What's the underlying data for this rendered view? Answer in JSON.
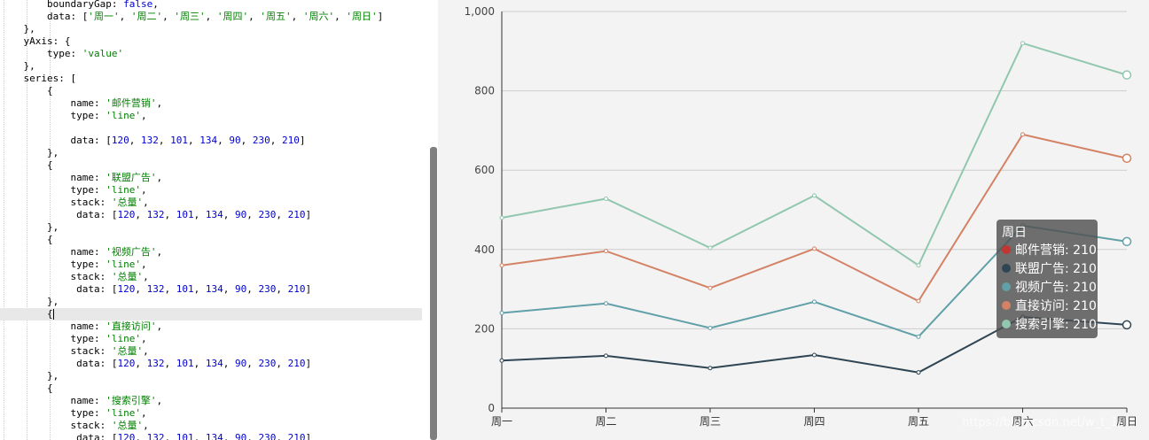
{
  "editor": {
    "lines": [
      [
        {
          "t": "        boundaryGap: ",
          "c": "key"
        },
        {
          "t": "false",
          "c": "bool"
        },
        {
          "t": ",",
          "c": "key"
        }
      ],
      [
        {
          "t": "        data: [",
          "c": "key"
        },
        {
          "t": "'周一'",
          "c": "str"
        },
        {
          "t": ", ",
          "c": "key"
        },
        {
          "t": "'周二'",
          "c": "str"
        },
        {
          "t": ", ",
          "c": "key"
        },
        {
          "t": "'周三'",
          "c": "str"
        },
        {
          "t": ", ",
          "c": "key"
        },
        {
          "t": "'周四'",
          "c": "str"
        },
        {
          "t": ", ",
          "c": "key"
        },
        {
          "t": "'周五'",
          "c": "str"
        },
        {
          "t": ", ",
          "c": "key"
        },
        {
          "t": "'周六'",
          "c": "str"
        },
        {
          "t": ", ",
          "c": "key"
        },
        {
          "t": "'周日'",
          "c": "str"
        },
        {
          "t": "]",
          "c": "key"
        }
      ],
      [
        {
          "t": "    },",
          "c": "key"
        }
      ],
      [
        {
          "t": "    yAxis: {",
          "c": "key"
        }
      ],
      [
        {
          "t": "        type: ",
          "c": "key"
        },
        {
          "t": "'value'",
          "c": "str"
        }
      ],
      [
        {
          "t": "    },",
          "c": "key"
        }
      ],
      [
        {
          "t": "    series: [",
          "c": "key"
        }
      ],
      [
        {
          "t": "        {",
          "c": "key"
        }
      ],
      [
        {
          "t": "            name: ",
          "c": "key"
        },
        {
          "t": "'邮件营销'",
          "c": "str"
        },
        {
          "t": ",",
          "c": "key"
        }
      ],
      [
        {
          "t": "            type: ",
          "c": "key"
        },
        {
          "t": "'line'",
          "c": "str"
        },
        {
          "t": ",",
          "c": "key"
        }
      ],
      [
        {
          "t": "",
          "c": "key"
        }
      ],
      [
        {
          "t": "            data: [",
          "c": "key"
        },
        {
          "t": "120",
          "c": "num"
        },
        {
          "t": ", ",
          "c": "key"
        },
        {
          "t": "132",
          "c": "num"
        },
        {
          "t": ", ",
          "c": "key"
        },
        {
          "t": "101",
          "c": "num"
        },
        {
          "t": ", ",
          "c": "key"
        },
        {
          "t": "134",
          "c": "num"
        },
        {
          "t": ", ",
          "c": "key"
        },
        {
          "t": "90",
          "c": "num"
        },
        {
          "t": ", ",
          "c": "key"
        },
        {
          "t": "230",
          "c": "num"
        },
        {
          "t": ", ",
          "c": "key"
        },
        {
          "t": "210",
          "c": "num"
        },
        {
          "t": "]",
          "c": "key"
        }
      ],
      [
        {
          "t": "        },",
          "c": "key"
        }
      ],
      [
        {
          "t": "        {",
          "c": "key"
        }
      ],
      [
        {
          "t": "            name: ",
          "c": "key"
        },
        {
          "t": "'联盟广告'",
          "c": "str"
        },
        {
          "t": ",",
          "c": "key"
        }
      ],
      [
        {
          "t": "            type: ",
          "c": "key"
        },
        {
          "t": "'line'",
          "c": "str"
        },
        {
          "t": ",",
          "c": "key"
        }
      ],
      [
        {
          "t": "            stack: ",
          "c": "key"
        },
        {
          "t": "'总量'",
          "c": "str"
        },
        {
          "t": ",",
          "c": "key"
        }
      ],
      [
        {
          "t": "             data: [",
          "c": "key"
        },
        {
          "t": "120",
          "c": "num"
        },
        {
          "t": ", ",
          "c": "key"
        },
        {
          "t": "132",
          "c": "num"
        },
        {
          "t": ", ",
          "c": "key"
        },
        {
          "t": "101",
          "c": "num"
        },
        {
          "t": ", ",
          "c": "key"
        },
        {
          "t": "134",
          "c": "num"
        },
        {
          "t": ", ",
          "c": "key"
        },
        {
          "t": "90",
          "c": "num"
        },
        {
          "t": ", ",
          "c": "key"
        },
        {
          "t": "230",
          "c": "num"
        },
        {
          "t": ", ",
          "c": "key"
        },
        {
          "t": "210",
          "c": "num"
        },
        {
          "t": "]",
          "c": "key"
        }
      ],
      [
        {
          "t": "        },",
          "c": "key"
        }
      ],
      [
        {
          "t": "        {",
          "c": "key"
        }
      ],
      [
        {
          "t": "            name: ",
          "c": "key"
        },
        {
          "t": "'视频广告'",
          "c": "str"
        },
        {
          "t": ",",
          "c": "key"
        }
      ],
      [
        {
          "t": "            type: ",
          "c": "key"
        },
        {
          "t": "'line'",
          "c": "str"
        },
        {
          "t": ",",
          "c": "key"
        }
      ],
      [
        {
          "t": "            stack: ",
          "c": "key"
        },
        {
          "t": "'总量'",
          "c": "str"
        },
        {
          "t": ",",
          "c": "key"
        }
      ],
      [
        {
          "t": "             data: [",
          "c": "key"
        },
        {
          "t": "120",
          "c": "num"
        },
        {
          "t": ", ",
          "c": "key"
        },
        {
          "t": "132",
          "c": "num"
        },
        {
          "t": ", ",
          "c": "key"
        },
        {
          "t": "101",
          "c": "num"
        },
        {
          "t": ", ",
          "c": "key"
        },
        {
          "t": "134",
          "c": "num"
        },
        {
          "t": ", ",
          "c": "key"
        },
        {
          "t": "90",
          "c": "num"
        },
        {
          "t": ", ",
          "c": "key"
        },
        {
          "t": "230",
          "c": "num"
        },
        {
          "t": ", ",
          "c": "key"
        },
        {
          "t": "210",
          "c": "num"
        },
        {
          "t": "]",
          "c": "key"
        }
      ],
      [
        {
          "t": "        },",
          "c": "key"
        }
      ],
      [
        {
          "t": "        {",
          "c": "key"
        }
      ],
      [
        {
          "t": "            name: ",
          "c": "key"
        },
        {
          "t": "'直接访问'",
          "c": "str"
        },
        {
          "t": ",",
          "c": "key"
        }
      ],
      [
        {
          "t": "            type: ",
          "c": "key"
        },
        {
          "t": "'line'",
          "c": "str"
        },
        {
          "t": ",",
          "c": "key"
        }
      ],
      [
        {
          "t": "            stack: ",
          "c": "key"
        },
        {
          "t": "'总量'",
          "c": "str"
        },
        {
          "t": ",",
          "c": "key"
        }
      ],
      [
        {
          "t": "             data: [",
          "c": "key"
        },
        {
          "t": "120",
          "c": "num"
        },
        {
          "t": ", ",
          "c": "key"
        },
        {
          "t": "132",
          "c": "num"
        },
        {
          "t": ", ",
          "c": "key"
        },
        {
          "t": "101",
          "c": "num"
        },
        {
          "t": ", ",
          "c": "key"
        },
        {
          "t": "134",
          "c": "num"
        },
        {
          "t": ", ",
          "c": "key"
        },
        {
          "t": "90",
          "c": "num"
        },
        {
          "t": ", ",
          "c": "key"
        },
        {
          "t": "230",
          "c": "num"
        },
        {
          "t": ", ",
          "c": "key"
        },
        {
          "t": "210",
          "c": "num"
        },
        {
          "t": "]",
          "c": "key"
        }
      ],
      [
        {
          "t": "        },",
          "c": "key"
        }
      ],
      [
        {
          "t": "        {",
          "c": "key"
        }
      ],
      [
        {
          "t": "            name: ",
          "c": "key"
        },
        {
          "t": "'搜索引擎'",
          "c": "str"
        },
        {
          "t": ",",
          "c": "key"
        }
      ],
      [
        {
          "t": "            type: ",
          "c": "key"
        },
        {
          "t": "'line'",
          "c": "str"
        },
        {
          "t": ",",
          "c": "key"
        }
      ],
      [
        {
          "t": "            stack: ",
          "c": "key"
        },
        {
          "t": "'总量'",
          "c": "str"
        },
        {
          "t": ",",
          "c": "key"
        }
      ],
      [
        {
          "t": "             data: [",
          "c": "key"
        },
        {
          "t": "120",
          "c": "num"
        },
        {
          "t": ", ",
          "c": "key"
        },
        {
          "t": "132",
          "c": "num"
        },
        {
          "t": ", ",
          "c": "key"
        },
        {
          "t": "101",
          "c": "num"
        },
        {
          "t": ", ",
          "c": "key"
        },
        {
          "t": "134",
          "c": "num"
        },
        {
          "t": ", ",
          "c": "key"
        },
        {
          "t": "90",
          "c": "num"
        },
        {
          "t": ", ",
          "c": "key"
        },
        {
          "t": "230",
          "c": "num"
        },
        {
          "t": ", ",
          "c": "key"
        },
        {
          "t": "210",
          "c": "num"
        },
        {
          "t": "]",
          "c": "key"
        }
      ]
    ],
    "active_line": 25
  },
  "chart_data": {
    "type": "line",
    "categories": [
      "周一",
      "周二",
      "周三",
      "周四",
      "周五",
      "周六",
      "周日"
    ],
    "ylim": [
      0,
      1000
    ],
    "yticks": [
      0,
      200,
      400,
      600,
      800,
      1000
    ],
    "ytick_labels": [
      "0",
      "200",
      "400",
      "600",
      "800",
      "1,000"
    ],
    "grid": true,
    "stacked_display_values": [
      [
        120,
        132,
        101,
        134,
        90,
        230,
        210
      ],
      [
        240,
        264,
        202,
        268,
        180,
        460,
        420
      ],
      [
        360,
        396,
        303,
        402,
        270,
        690,
        630
      ],
      [
        480,
        528,
        404,
        536,
        360,
        920,
        840
      ]
    ],
    "series": [
      {
        "name": "邮件营销",
        "values": [
          120,
          132,
          101,
          134,
          90,
          230,
          210
        ],
        "color": "#c23531"
      },
      {
        "name": "联盟广告",
        "values": [
          120,
          132,
          101,
          134,
          90,
          230,
          210
        ],
        "color": "#2f4554"
      },
      {
        "name": "视频广告",
        "values": [
          120,
          132,
          101,
          134,
          90,
          230,
          210
        ],
        "color": "#61a0a8"
      },
      {
        "name": "直接访问",
        "values": [
          120,
          132,
          101,
          134,
          90,
          230,
          210
        ],
        "color": "#d48265"
      },
      {
        "name": "搜索引擎",
        "values": [
          120,
          132,
          101,
          134,
          90,
          230,
          210
        ],
        "color": "#91c7ae"
      }
    ],
    "hover_index": 6
  },
  "tooltip": {
    "title": "周日",
    "rows": [
      {
        "label": "邮件营销: 210",
        "color": "#c23531"
      },
      {
        "label": "联盟广告: 210",
        "color": "#2f4554"
      },
      {
        "label": "视频广告: 210",
        "color": "#61a0a8"
      },
      {
        "label": "直接访问: 210",
        "color": "#d48265"
      },
      {
        "label": "搜索引擎: 210",
        "color": "#91c7ae"
      }
    ]
  },
  "watermark": "https://blog.csdn.net/w_t_1/"
}
